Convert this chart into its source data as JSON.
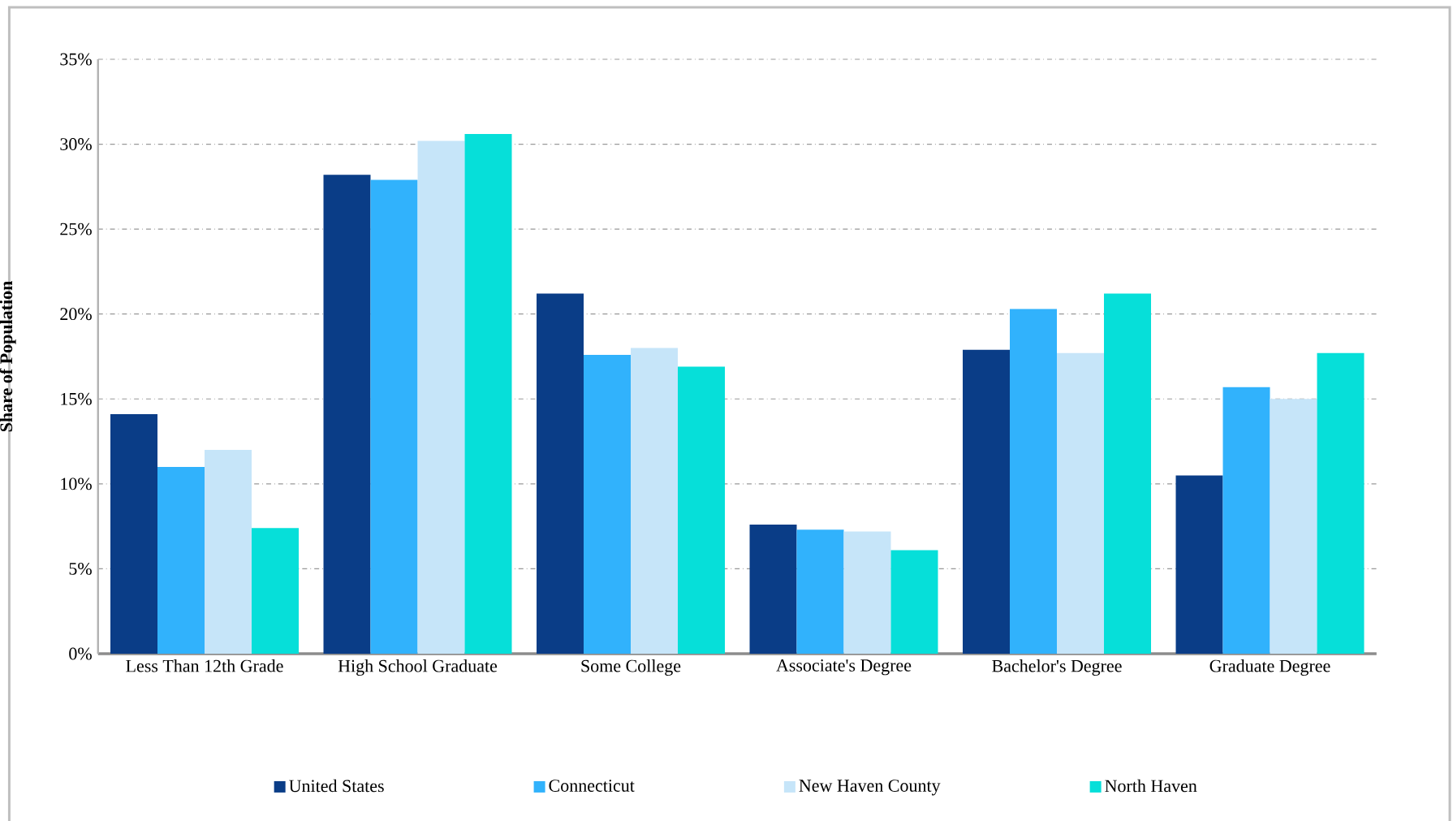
{
  "chart_data": {
    "type": "bar",
    "ylabel": "Share of Population",
    "categories": [
      "Less Than 12th Grade",
      "High School Graduate",
      "Some College",
      "Associate's Degree",
      "Bachelor's Degree",
      "Graduate Degree"
    ],
    "series": [
      {
        "name": "United States",
        "color": "#0a3d87",
        "values": [
          14.1,
          28.2,
          21.2,
          7.6,
          17.9,
          10.5
        ]
      },
      {
        "name": "Connecticut",
        "color": "#31b2fc",
        "values": [
          11.0,
          27.9,
          17.6,
          7.3,
          20.3,
          15.7
        ]
      },
      {
        "name": "New Haven County",
        "color": "#c6e5f9",
        "values": [
          12.0,
          30.2,
          18.0,
          7.2,
          17.7,
          15.0
        ]
      },
      {
        "name": "North Haven",
        "color": "#06dfd9",
        "values": [
          7.4,
          30.6,
          16.9,
          6.1,
          21.2,
          17.7
        ]
      }
    ],
    "ylim": [
      0,
      35
    ],
    "yticks": [
      {
        "value": 0,
        "label": "0%"
      },
      {
        "value": 5,
        "label": "5%"
      },
      {
        "value": 10,
        "label": "10%"
      },
      {
        "value": 15,
        "label": "15%"
      },
      {
        "value": 20,
        "label": "20%"
      },
      {
        "value": 25,
        "label": "25%"
      },
      {
        "value": 30,
        "label": "30%"
      },
      {
        "value": 35,
        "label": "35%"
      }
    ],
    "grid": "y",
    "legend": "bottom"
  }
}
